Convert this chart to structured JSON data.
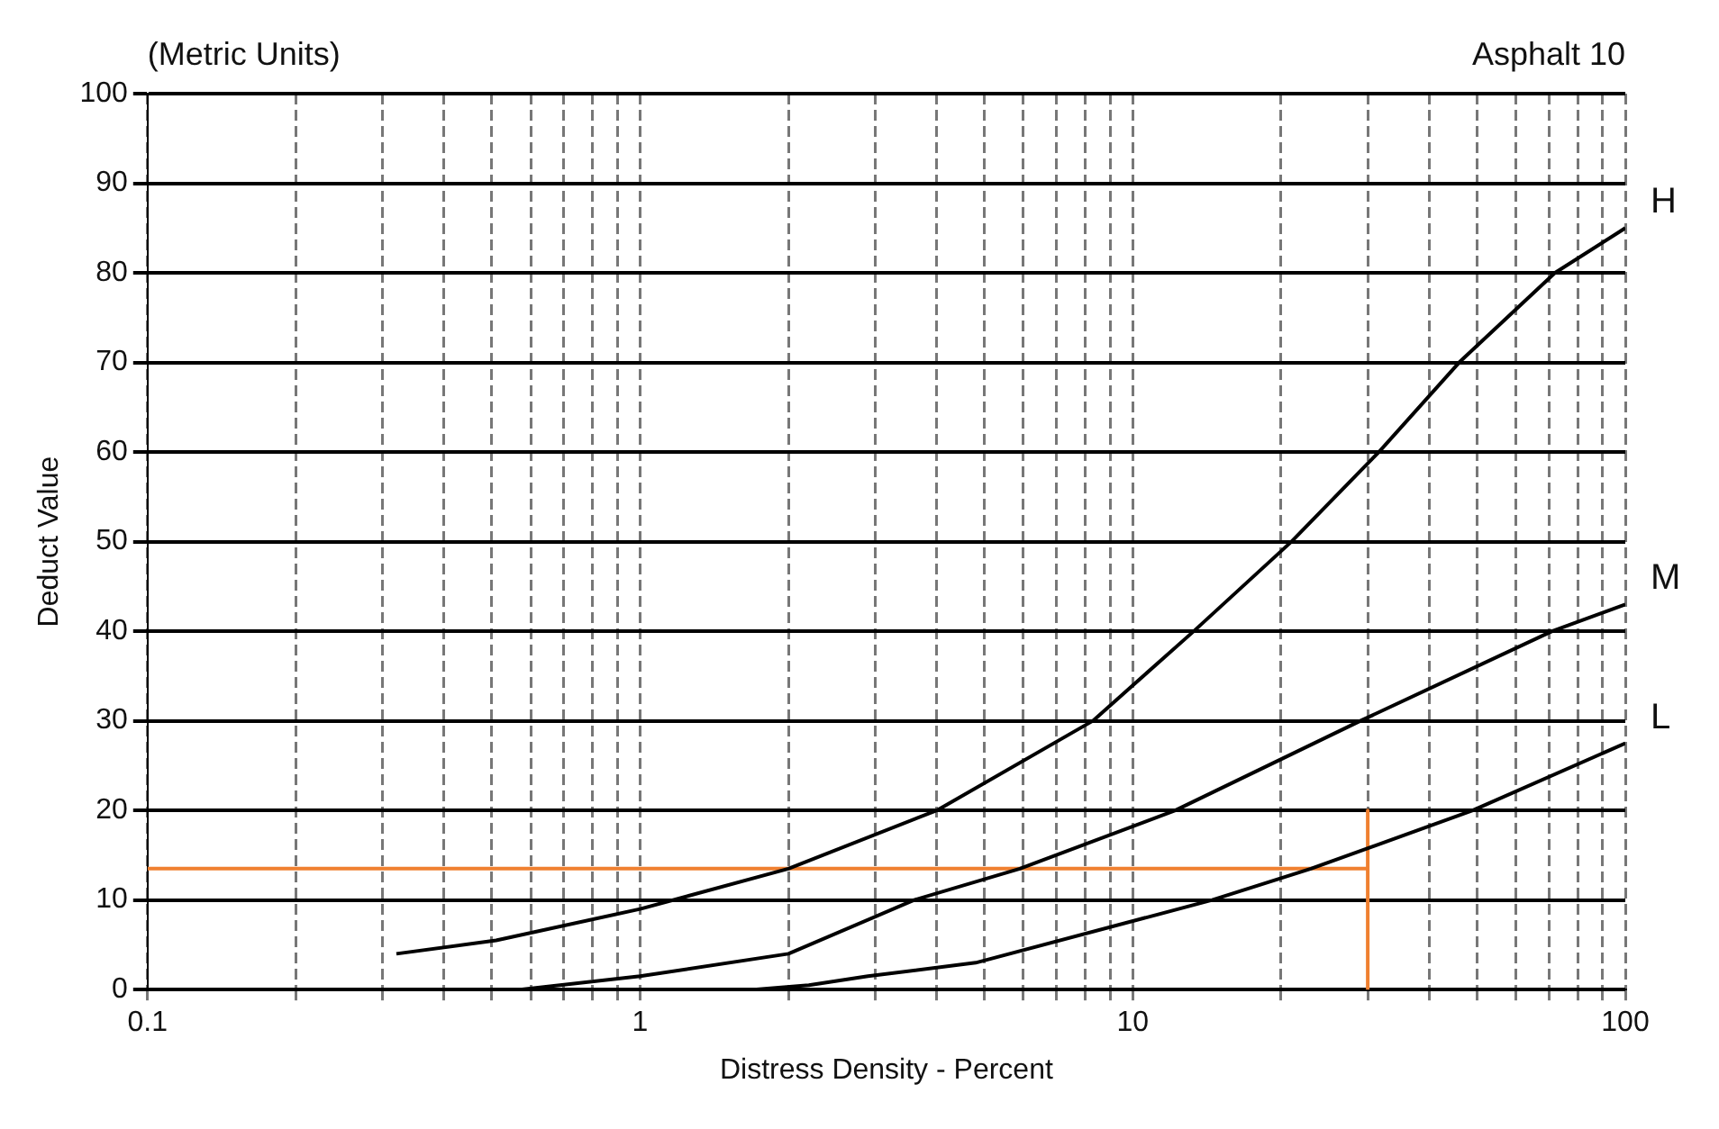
{
  "chart_data": {
    "type": "line",
    "title": "Asphalt 10",
    "subtitle": "(Metric Units)",
    "xlabel": "Distress Density - Percent",
    "ylabel": "Deduct Value",
    "log": "x",
    "grid": true,
    "marker": "none",
    "line_style": "solid",
    "xlim": [
      0.1,
      100
    ],
    "ylim": [
      0,
      100
    ],
    "xticks": [
      0.1,
      {
        "value": 0.2,
        "label": null
      },
      {
        "value": 0.3,
        "label": null
      },
      {
        "value": 0.4,
        "label": null
      },
      {
        "value": 0.5,
        "label": null
      },
      {
        "value": 0.6,
        "label": null
      },
      {
        "value": 0.7,
        "label": null
      },
      {
        "value": 0.8,
        "label": null
      },
      {
        "value": 0.9,
        "label": null
      },
      1,
      {
        "value": 2,
        "label": null
      },
      {
        "value": 3,
        "label": null
      },
      {
        "value": 4,
        "label": null
      },
      {
        "value": 5,
        "label": null
      },
      {
        "value": 6,
        "label": null
      },
      {
        "value": 7,
        "label": null
      },
      {
        "value": 8,
        "label": null
      },
      {
        "value": 9,
        "label": null
      },
      10,
      {
        "value": 20,
        "label": null
      },
      {
        "value": 30,
        "label": null
      },
      {
        "value": 40,
        "label": null
      },
      {
        "value": 50,
        "label": null
      },
      {
        "value": 60,
        "label": null
      },
      {
        "value": 70,
        "label": null
      },
      {
        "value": 80,
        "label": null
      },
      {
        "value": 90,
        "label": null
      },
      100
    ],
    "yticks": [
      0,
      10,
      20,
      30,
      40,
      50,
      60,
      70,
      80,
      90,
      100
    ],
    "series": [
      {
        "name": "H",
        "color": "#000000",
        "x": [
          0.32,
          0.51,
          1,
          2,
          4,
          8.3,
          13.3,
          21,
          31.6,
          46,
          72,
          100
        ],
        "values": [
          4,
          5.5,
          9,
          13.5,
          20,
          30,
          40,
          50,
          60,
          70,
          80,
          85
        ]
      },
      {
        "name": "M",
        "color": "#000000",
        "x": [
          0.57,
          1,
          2,
          3.6,
          5.9,
          12.2,
          29,
          71,
          100
        ],
        "values": [
          0,
          1.5,
          4,
          10,
          13.5,
          20,
          30,
          40,
          43
        ]
      },
      {
        "name": "L",
        "color": "#000000",
        "x": [
          1.7,
          2.2,
          2.9,
          4.8,
          14.5,
          23,
          49,
          100
        ],
        "values": [
          0,
          0.5,
          1.5,
          3,
          10,
          13.5,
          20,
          27.5
        ]
      },
      {
        "color": "#f08030",
        "x": [
          0.1,
          30,
          30,
          30
        ],
        "values": [
          13.5,
          13.5,
          20,
          0
        ]
      }
    ]
  }
}
